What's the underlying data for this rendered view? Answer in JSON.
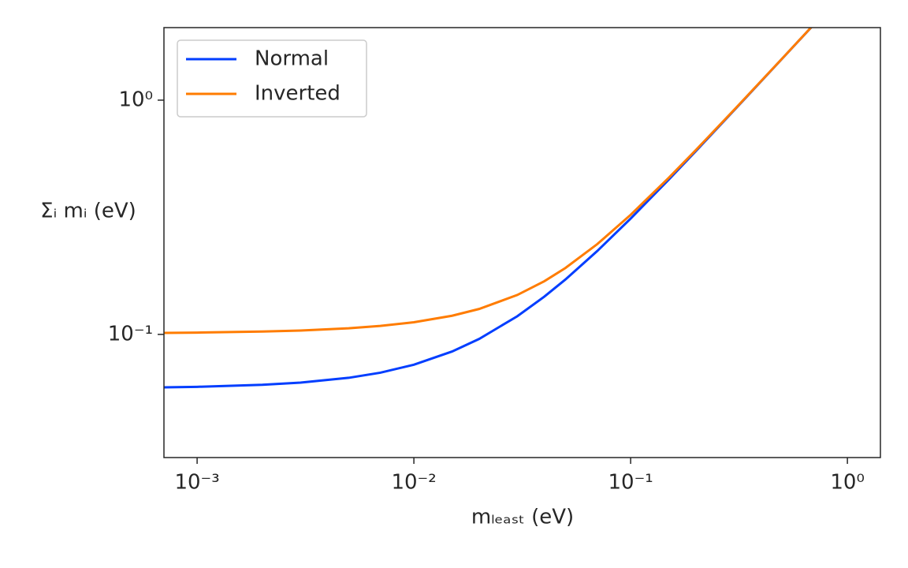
{
  "chart_data": {
    "type": "line",
    "x_label": "mₗₑₐₛₜ (eV)",
    "y_label": "Σᵢ mᵢ (eV)",
    "log_x": true,
    "log_y": true,
    "grid": false,
    "legend": "upper left",
    "x": [
      0.0007,
      0.001,
      0.002,
      0.003,
      0.005,
      0.007,
      0.01,
      0.015,
      0.02,
      0.03,
      0.04,
      0.05,
      0.07,
      0.1,
      0.15,
      0.2,
      0.3,
      0.5,
      0.7
    ],
    "series": [
      {
        "name": "Normal",
        "color": "#023eff",
        "values": [
          0.05939,
          0.05973,
          0.06093,
          0.06226,
          0.06525,
          0.06862,
          0.07422,
          0.08452,
          0.09565,
          0.1195,
          0.145,
          0.1715,
          0.2266,
          0.3122,
          0.4584,
          0.6063,
          0.9043,
          1.503,
          2.102
        ]
      },
      {
        "name": "Inverted",
        "color": "#ff7c00",
        "values": [
          0.1015,
          0.1018,
          0.1028,
          0.1039,
          0.1062,
          0.1087,
          0.1127,
          0.1201,
          0.1284,
          0.1473,
          0.1687,
          0.192,
          0.2425,
          0.3239,
          0.4665,
          0.6125,
          0.9084,
          1.505,
          2.104
        ]
      }
    ],
    "xlim": [
      0.000703,
      1.42
    ],
    "ylim": [
      0.0298,
      2.04
    ],
    "xticks": [
      {
        "value": 0.001,
        "label": "10⁻³"
      },
      {
        "value": 0.01,
        "label": "10⁻²"
      },
      {
        "value": 0.1,
        "label": "10⁻¹"
      },
      {
        "value": 1,
        "label": "10⁰"
      }
    ],
    "yticks": [
      {
        "value": 0.1,
        "label": "10⁻¹"
      },
      {
        "value": 1,
        "label": "10⁰"
      }
    ]
  }
}
